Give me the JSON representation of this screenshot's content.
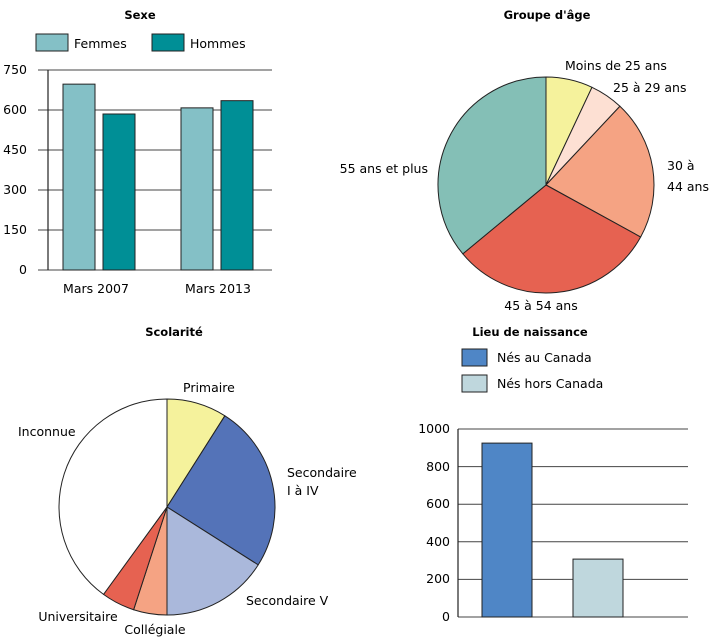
{
  "chart_data": [
    {
      "type": "bar",
      "title": "Sexe",
      "categories": [
        "Mars 2007",
        "Mars 2013"
      ],
      "series": [
        {
          "name": "Femmes",
          "values": [
            697,
            608
          ],
          "color": "#84c0c6"
        },
        {
          "name": "Hommes",
          "values": [
            585,
            635
          ],
          "color": "#008f96"
        }
      ],
      "yticks": [
        "0",
        "150",
        "300",
        "450",
        "600",
        "750"
      ],
      "ylim": [
        0,
        750
      ],
      "legend": "top",
      "grid": true
    },
    {
      "type": "pie",
      "title": "Groupe d'âge",
      "slices": [
        {
          "label": "Moins de 25 ans",
          "value": 7,
          "color": "#f5f29c"
        },
        {
          "label": "25 à 29 ans",
          "value": 5,
          "color": "#fde0d3"
        },
        {
          "label": "30 à 44 ans",
          "value": 21,
          "color": "#f5a383"
        },
        {
          "label": "45 à 54 ans",
          "value": 31,
          "color": "#e66251"
        },
        {
          "label": "55 ans et plus",
          "value": 36,
          "color": "#84bfb6"
        }
      ]
    },
    {
      "type": "pie",
      "title": "Scolarité",
      "slices": [
        {
          "label": "Primaire",
          "value": 9,
          "color": "#f5f29c"
        },
        {
          "label": "Secondaire I à IV",
          "value": 25,
          "color": "#5473b8"
        },
        {
          "label": "Secondaire V",
          "value": 16,
          "color": "#aab8db"
        },
        {
          "label": "Collégiale",
          "value": 5,
          "color": "#f5a383"
        },
        {
          "label": "Universitaire",
          "value": 5,
          "color": "#e66251"
        },
        {
          "label": "Inconnue",
          "value": 40,
          "color": "#ffffff"
        }
      ]
    },
    {
      "type": "bar",
      "title": "Lieu de naissance",
      "series": [
        {
          "name": "Nés au Canada",
          "values": [
            925
          ],
          "color": "#4f86c6"
        },
        {
          "name": "Nés hors Canada",
          "values": [
            308
          ],
          "color": "#bfd7dd"
        }
      ],
      "yticks": [
        "0",
        "200",
        "400",
        "600",
        "800",
        "1000"
      ],
      "ylim": [
        0,
        1000
      ],
      "legend": "top",
      "grid": true
    }
  ]
}
